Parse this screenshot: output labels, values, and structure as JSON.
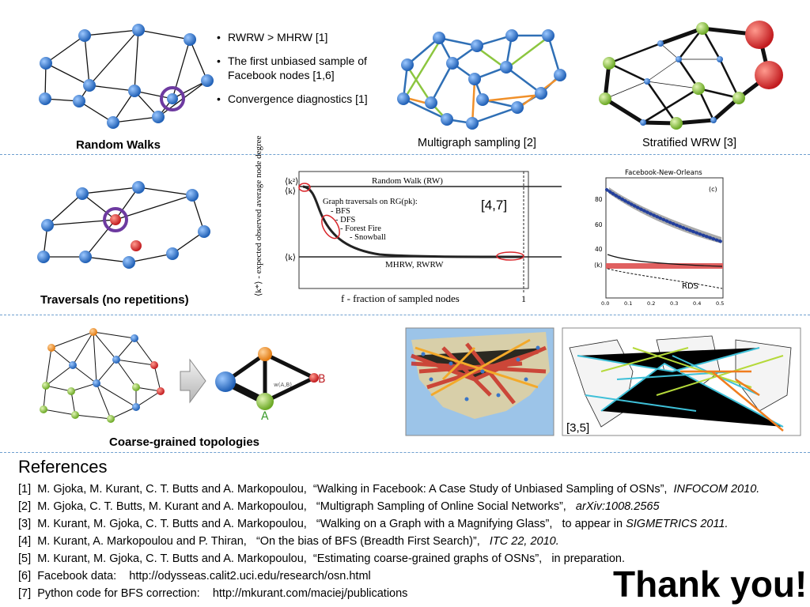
{
  "captions": {
    "random_walks": "Random Walks",
    "multigraph": "Multigraph sampling [2]",
    "stratified": "Stratified WRW [3]",
    "traversals": "Traversals (no repetitions)",
    "coarse": "Coarse-grained topologies"
  },
  "bullets": [
    "RWRW > MHRW [1]",
    "The first unbiased sample of Facebook nodes [1,6]",
    "Convergence diagnostics [1]"
  ],
  "traversal_chart": {
    "ylabel": "⟨k*⟩ - expected observed average node degree",
    "y_tick_top_1": "⟨k²⟩",
    "y_tick_top_2": "⟨k⟩",
    "y_tick_bottom": "⟨k⟩",
    "rw_label": "Random Walk (RW)",
    "legend_title": "Graph traversals on RG(pk):",
    "legend_items": [
      "- BFS",
      "- DFS",
      "- Forest Fire",
      "- Snowball"
    ],
    "mhrw_label": "MHRW, RWRW",
    "xlabel": "f - fraction of sampled nodes",
    "x_tick_end": "1",
    "ref": "[4,7]"
  },
  "fb_chart": {
    "title": "Facebook-New-Orleans",
    "panel": "(c)",
    "y_ticks": [
      "80",
      "60",
      "40"
    ],
    "y_mean": "⟨k⟩",
    "x_ticks": [
      "0.0",
      "0.1",
      "0.2",
      "0.3",
      "0.4",
      "0.5"
    ],
    "rds": "RDS"
  },
  "coarse": {
    "node_b": "B",
    "node_a": "A",
    "edge_label": "w(A,B)"
  },
  "map_ref": "[3,5]",
  "references": {
    "title": "References",
    "items": [
      {
        "n": "[1]",
        "authors": "M. Gjoka, M. Kurant, C. T. Butts and A. Markopoulou,",
        "title": "“Walking in Facebook: A Case Study of Unbiased Sampling of OSNs”,",
        "venue": "INFOCOM 2010.",
        "pre": ""
      },
      {
        "n": "[2]",
        "authors": "M. Gjoka, C. T. Butts, M. Kurant and A. Markopoulou,",
        "title": "“Multigraph Sampling of Online Social Networks”,",
        "venue": "arXiv:1008.2565",
        "pre": ""
      },
      {
        "n": "[3]",
        "authors": "M. Kurant, M. Gjoka, C. T. Butts and A. Markopoulou,",
        "title": "“Walking on a Graph with a Magnifying Glass”,",
        "venue": "SIGMETRICS 2011.",
        "pre": "to appear in"
      },
      {
        "n": "[4]",
        "authors": "M. Kurant, A. Markopoulou and P. Thiran,",
        "title": "“On the bias of BFS (Breadth First Search)”,",
        "venue": "ITC 22, 2010.",
        "pre": ""
      },
      {
        "n": "[5]",
        "authors": "M. Kurant, M. Gjoka, C. T. Butts and A. Markopoulou,",
        "title": "“Estimating coarse-grained graphs of OSNs”,",
        "venue": "",
        "pre": "in preparation."
      },
      {
        "n": "[6]",
        "authors": "Facebook data:",
        "title": "http://odysseas.calit2.uci.edu/research/osn.html",
        "venue": "",
        "pre": ""
      },
      {
        "n": "[7]",
        "authors": "Python code for BFS correction:",
        "title": "http://mkurant.com/maciej/publications",
        "venue": "",
        "pre": ""
      }
    ]
  },
  "thank_you": "Thank you!",
  "colors": {
    "node_blue": "#2d6fc7",
    "node_green": "#8cc63f",
    "node_orange": "#f0902a",
    "node_red": "#d9252a",
    "highlight_purple": "#6d3aa0",
    "divider": "#6f9fcf"
  }
}
